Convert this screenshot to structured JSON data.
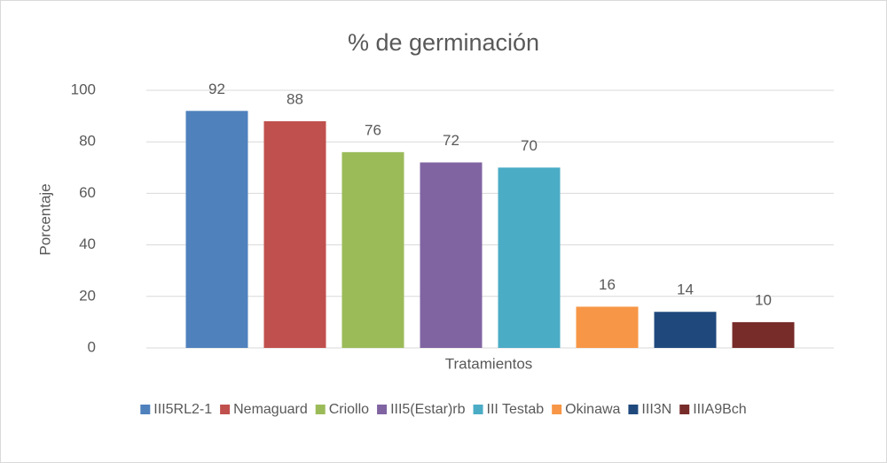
{
  "chart_data": {
    "type": "bar",
    "title": "% de germinación",
    "x_label": "Tratamientos",
    "y_label": "Porcentaje",
    "categories": [
      null
    ],
    "series": [
      {
        "name": "III5RL2-1",
        "color": "#4f81bd",
        "values": [
          92
        ]
      },
      {
        "name": "Nemaguard",
        "color": "#c0504d",
        "values": [
          88
        ]
      },
      {
        "name": "Criollo",
        "color": "#9bbb59",
        "values": [
          76
        ]
      },
      {
        "name": "III5(Estar)rb",
        "color": "#8064a2",
        "values": [
          72
        ]
      },
      {
        "name": "III Testab",
        "color": "#4bacc6",
        "values": [
          70
        ]
      },
      {
        "name": "Okinawa",
        "color": "#f79646",
        "values": [
          16
        ]
      },
      {
        "name": "III3N",
        "color": "#1f497d",
        "values": [
          14
        ]
      },
      {
        "name": "IIIA9Bch",
        "color": "#772c2a",
        "values": [
          10
        ]
      }
    ],
    "ylim": [
      0,
      100
    ],
    "yticks": [
      0,
      20,
      40,
      60,
      80,
      100
    ],
    "grid": true,
    "legend": "bottom"
  }
}
